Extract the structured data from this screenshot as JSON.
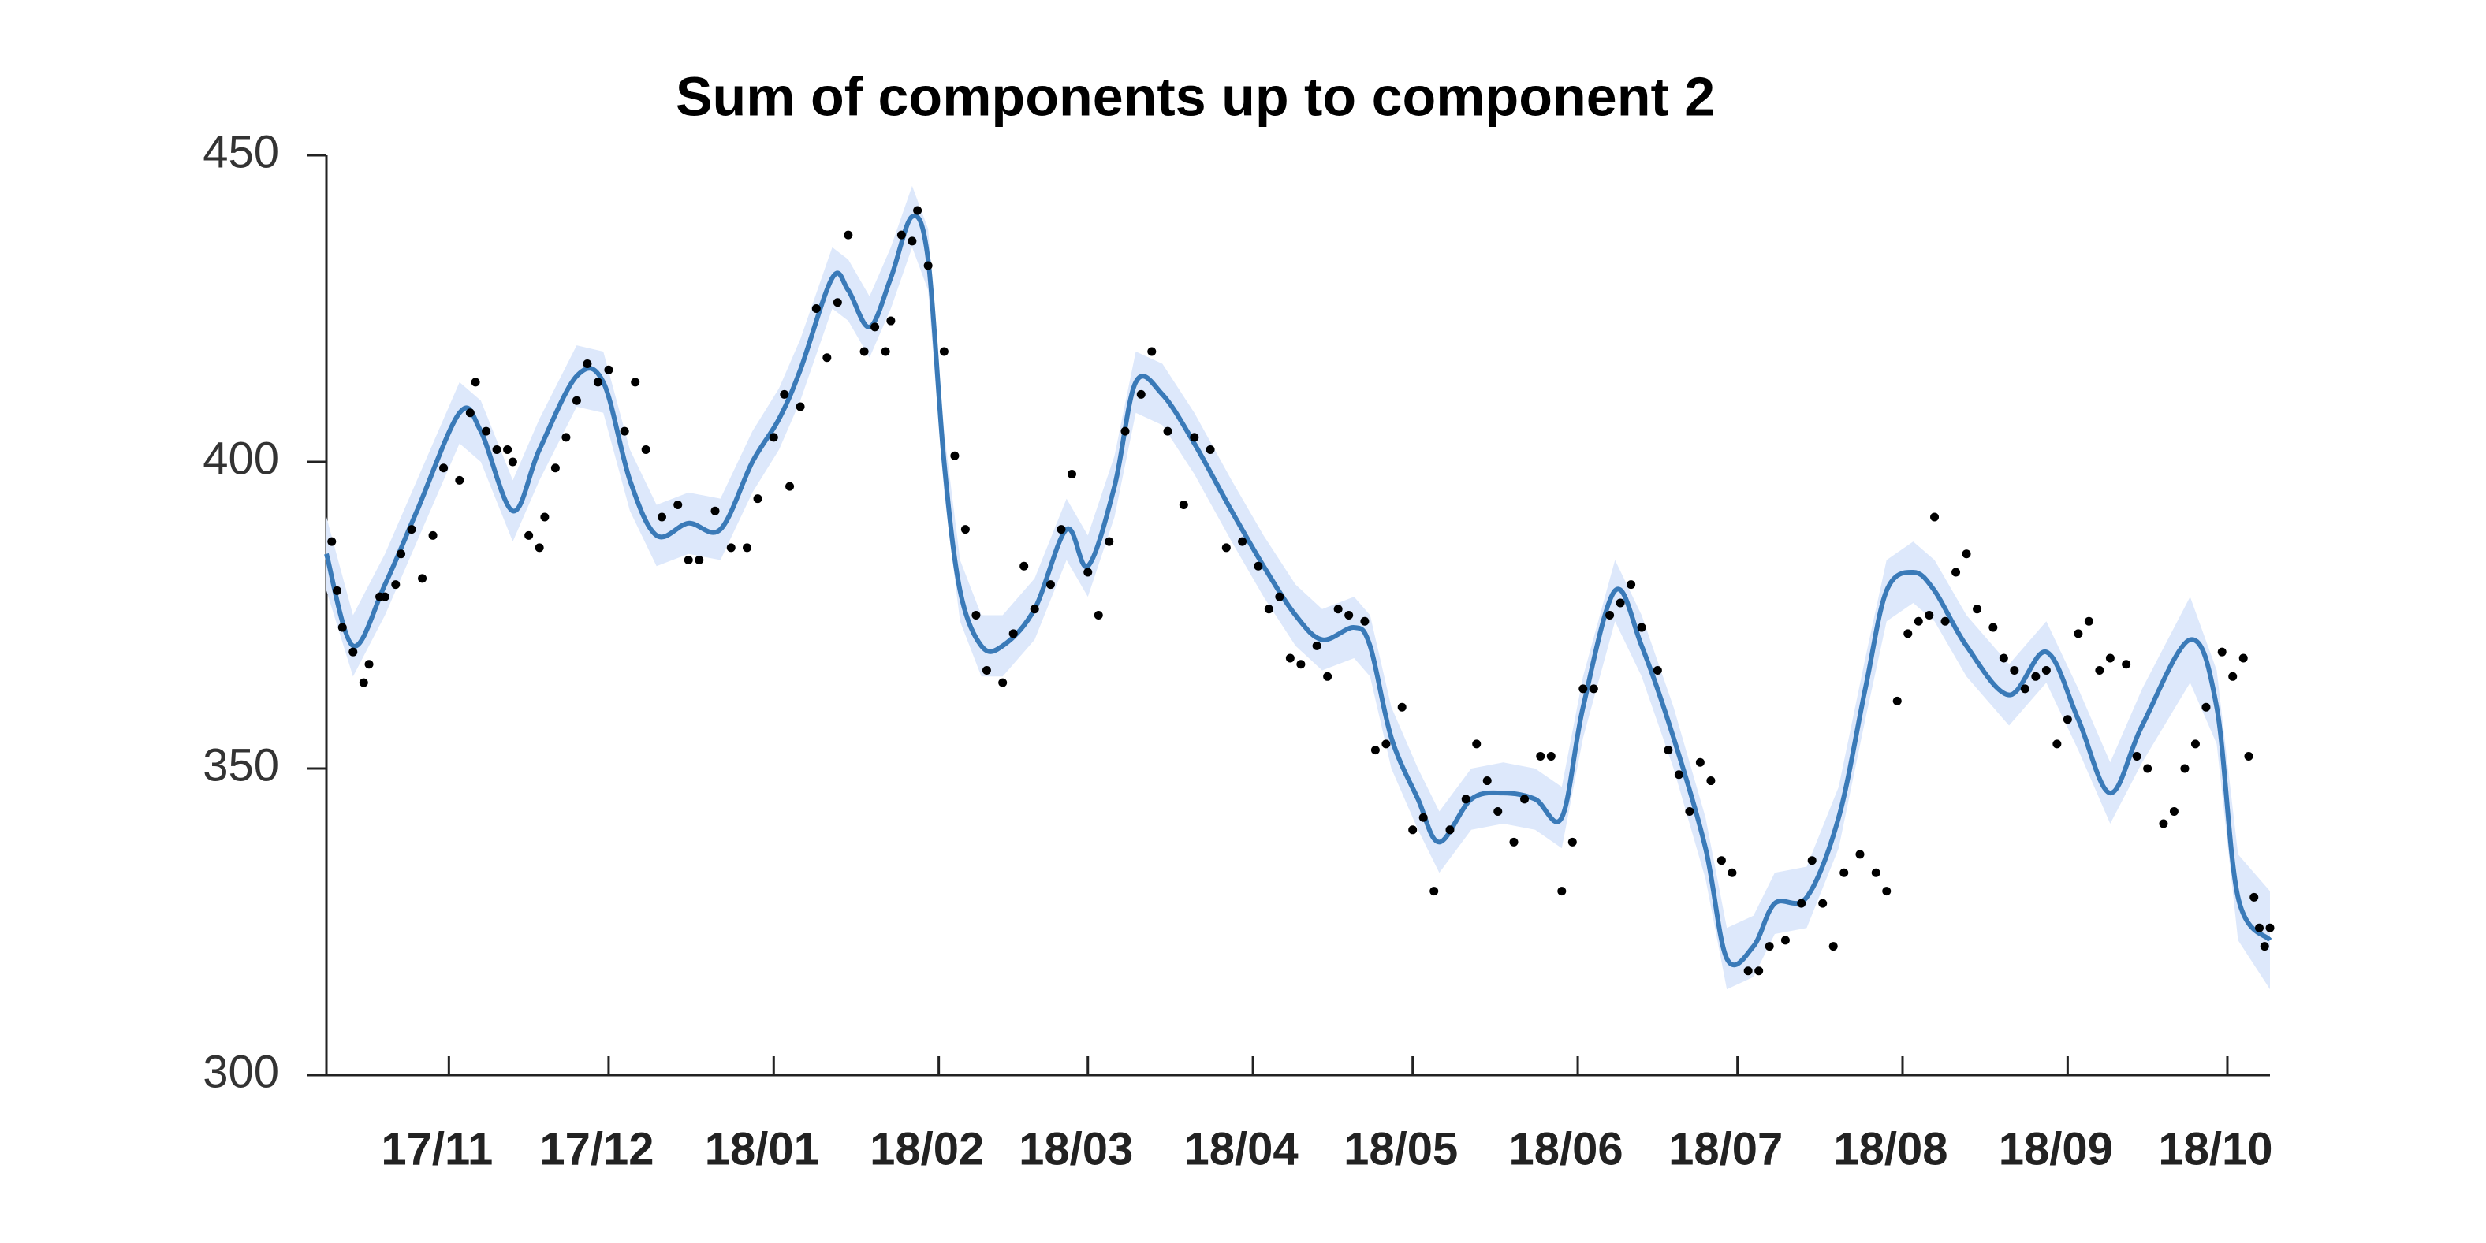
{
  "chart_data": {
    "type": "line",
    "title": "Sum of components up to component 2",
    "xlim": [
      -23,
      342
    ],
    "xticks": [
      {
        "value": 0,
        "label": "17/11"
      },
      {
        "value": 30,
        "label": "17/12"
      },
      {
        "value": 61,
        "label": "18/01"
      },
      {
        "value": 92,
        "label": "18/02"
      },
      {
        "value": 120,
        "label": "18/03"
      },
      {
        "value": 151,
        "label": "18/04"
      },
      {
        "value": 181,
        "label": "18/05"
      },
      {
        "value": 212,
        "label": "18/06"
      },
      {
        "value": 242,
        "label": "18/07"
      },
      {
        "value": 273,
        "label": "18/08"
      },
      {
        "value": 304,
        "label": "18/09"
      },
      {
        "value": 334,
        "label": "18/10"
      }
    ],
    "ylim": [
      300,
      450
    ],
    "yticks": [
      300,
      350,
      400,
      450
    ],
    "line": {
      "color": "#3a7ab8",
      "band_color": "#dde8fb",
      "x": [
        -23,
        -18,
        -12,
        -6,
        2,
        6,
        12,
        17,
        24,
        29,
        34,
        39,
        45,
        51,
        57,
        62,
        66,
        72,
        75,
        79,
        83,
        87,
        90,
        93,
        96,
        100,
        104,
        110,
        116,
        120,
        125,
        129,
        134,
        140,
        147,
        153,
        159,
        164,
        170,
        173,
        177,
        182,
        186,
        192,
        198,
        204,
        209,
        213,
        219,
        224,
        230,
        236,
        240,
        245,
        249,
        255,
        261,
        266,
        270,
        275,
        279,
        285,
        293,
        300,
        306,
        312,
        318,
        327,
        332,
        336,
        342
      ],
      "values": [
        385,
        370,
        380,
        392,
        408,
        405,
        392,
        402,
        414,
        413,
        397,
        388,
        390,
        389,
        400,
        407,
        415,
        430,
        428,
        422,
        430,
        440,
        433,
        400,
        379,
        370,
        370,
        376,
        389,
        383,
        396,
        413,
        411,
        403,
        392,
        383,
        375,
        371,
        373,
        370,
        355,
        345,
        338,
        345,
        346,
        345,
        342,
        360,
        379,
        370,
        355,
        337,
        319,
        321,
        328,
        329,
        342,
        363,
        379,
        382,
        379,
        370,
        362,
        369,
        358,
        346,
        357,
        371,
        360,
        329,
        322
      ],
      "lower": [
        379,
        365,
        375,
        387,
        403,
        400,
        387,
        397,
        409,
        408,
        392,
        383,
        385,
        384,
        395,
        402,
        410,
        425,
        423,
        417,
        425,
        435,
        428,
        395,
        374,
        365,
        365,
        371,
        384,
        378,
        391,
        408,
        406,
        398,
        387,
        378,
        370,
        366,
        368,
        365,
        350,
        340,
        333,
        340,
        341,
        340,
        337,
        355,
        374,
        365,
        350,
        332,
        314,
        316,
        323,
        324,
        337,
        358,
        374,
        377,
        374,
        365,
        357,
        364,
        353,
        341,
        351,
        364,
        354,
        322,
        314
      ],
      "upper": [
        391,
        375,
        385,
        397,
        413,
        410,
        397,
        407,
        419,
        418,
        402,
        393,
        395,
        394,
        405,
        412,
        420,
        435,
        433,
        427,
        435,
        445,
        438,
        405,
        384,
        375,
        375,
        381,
        394,
        388,
        401,
        418,
        416,
        408,
        397,
        388,
        380,
        376,
        378,
        375,
        360,
        350,
        343,
        350,
        351,
        350,
        347,
        365,
        384,
        375,
        360,
        342,
        324,
        326,
        333,
        334,
        347,
        368,
        384,
        387,
        384,
        375,
        367,
        374,
        363,
        351,
        363,
        378,
        366,
        336,
        330
      ]
    },
    "scatter": {
      "color": "#000000",
      "x": [
        -22,
        -21,
        -20,
        -18,
        -16,
        -15,
        -13,
        -12,
        -10,
        -9,
        -7,
        -5,
        -3,
        -1,
        2,
        4,
        5,
        7,
        9,
        11,
        12,
        15,
        17,
        18,
        20,
        22,
        24,
        26,
        28,
        30,
        33,
        35,
        37,
        40,
        43,
        45,
        47,
        50,
        53,
        56,
        58,
        61,
        63,
        64,
        66,
        69,
        71,
        73,
        75,
        78,
        80,
        82,
        83,
        85,
        87,
        88,
        90,
        93,
        95,
        97,
        99,
        101,
        104,
        106,
        108,
        110,
        113,
        115,
        117,
        120,
        122,
        124,
        127,
        130,
        132,
        135,
        138,
        140,
        143,
        146,
        149,
        152,
        154,
        156,
        158,
        160,
        163,
        165,
        167,
        169,
        172,
        174,
        176,
        179,
        181,
        183,
        185,
        188,
        191,
        193,
        195,
        197,
        200,
        202,
        205,
        207,
        209,
        211,
        213,
        215,
        218,
        220,
        222,
        224,
        227,
        229,
        231,
        233,
        235,
        237,
        239,
        241,
        244,
        246,
        248,
        251,
        254,
        256,
        258,
        260,
        262,
        265,
        268,
        270,
        272,
        274,
        276,
        278,
        279,
        281,
        283,
        285,
        287,
        290,
        292,
        294,
        296,
        298,
        300,
        302,
        304,
        306,
        308,
        310,
        312,
        315,
        317,
        319,
        322,
        324,
        326,
        328,
        330,
        333,
        335,
        337,
        338,
        339,
        340,
        341,
        342
      ],
      "values": [
        387,
        379,
        373,
        369,
        364,
        367,
        378,
        378,
        380,
        385,
        389,
        381,
        388,
        399,
        397,
        408,
        413,
        405,
        402,
        402,
        400,
        388,
        386,
        391,
        399,
        404,
        410,
        416,
        413,
        415,
        405,
        413,
        402,
        391,
        393,
        384,
        384,
        392,
        386,
        386,
        394,
        404,
        411,
        396,
        409,
        425,
        417,
        426,
        437,
        418,
        422,
        418,
        423,
        437,
        436,
        441,
        432,
        418,
        401,
        389,
        375,
        366,
        364,
        372,
        383,
        376,
        380,
        389,
        398,
        382,
        375,
        387,
        405,
        411,
        418,
        405,
        393,
        404,
        402,
        386,
        387,
        383,
        376,
        378,
        368,
        367,
        370,
        365,
        376,
        375,
        374,
        353,
        354,
        360,
        340,
        342,
        330,
        340,
        345,
        354,
        348,
        343,
        338,
        345,
        352,
        352,
        330,
        338,
        363,
        363,
        375,
        377,
        380,
        373,
        366,
        353,
        349,
        343,
        351,
        348,
        335,
        333,
        317,
        317,
        321,
        322,
        328,
        335,
        328,
        321,
        333,
        336,
        333,
        330,
        361,
        372,
        374,
        375,
        391,
        374,
        382,
        385,
        376,
        373,
        368,
        366,
        363,
        365,
        366,
        354,
        358,
        372,
        374,
        366,
        368,
        367,
        352,
        350,
        341,
        343,
        350,
        354,
        360,
        369,
        365,
        368,
        352,
        329,
        324,
        321,
        324
      ]
    }
  }
}
